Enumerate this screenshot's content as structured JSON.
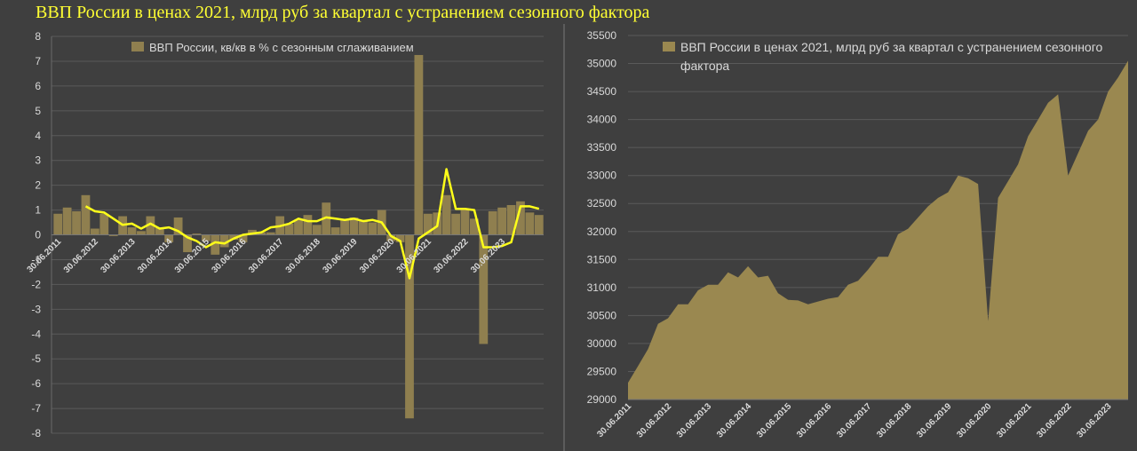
{
  "page_title": "ВВП России в ценах 2021, млрд руб за квартал с устранением сезонного фактора",
  "colors": {
    "background": "#3f3f3f",
    "bar": "#8f7f4f",
    "area": "#9a8850",
    "line": "#ffff1a",
    "title": "#ffff33",
    "text": "#d9d9d9",
    "grid": "#5a5a5a"
  },
  "chart_data": [
    {
      "type": "bar",
      "legend": [
        "ВВП России, кв/кв в % с сезонным сглаживанием"
      ],
      "legend_position": "top",
      "yticks": [
        "8",
        "7",
        "6",
        "5",
        "4",
        "3",
        "2",
        "1",
        "0",
        "-1",
        "-2",
        "-3",
        "-4",
        "-5",
        "-6",
        "-7",
        "-8"
      ],
      "ylim": [
        -8,
        8
      ],
      "xticks": [
        "30.06.2011",
        "30.06.2012",
        "30.06.2013",
        "30.06.2014",
        "30.06.2015",
        "30.06.2016",
        "30.06.2017",
        "30.06.2018",
        "30.06.2019",
        "30.06.2020",
        "30.06.2021",
        "30.06.2022",
        "30.06.2023"
      ],
      "series": [
        {
          "name": "ВВП России, кв/кв в % с сезонным сглаживанием",
          "kind": "bar",
          "values": [
            0.85,
            1.1,
            0.95,
            1.6,
            0.25,
            0.85,
            -0.05,
            0.75,
            0.3,
            0.15,
            0.75,
            0.3,
            -0.3,
            0.7,
            -0.7,
            0.05,
            -0.25,
            -0.8,
            -0.5,
            -0.2,
            -0.3,
            0.2,
            0.1,
            0.1,
            0.75,
            0.45,
            0.6,
            0.8,
            0.4,
            1.3,
            0.3,
            0.6,
            0.7,
            0.6,
            0.5,
            1.0,
            -0.25,
            -0.3,
            -7.4,
            7.25,
            0.85,
            0.9,
            1.6,
            0.85,
            1.05,
            0.65,
            -4.4,
            0.95,
            1.1,
            1.2,
            1.35,
            0.9,
            0.8
          ]
        },
        {
          "name": "",
          "kind": "line",
          "values": [
            null,
            null,
            null,
            1.15,
            0.95,
            0.9,
            0.65,
            0.4,
            0.45,
            0.25,
            0.45,
            0.25,
            0.3,
            0.15,
            -0.1,
            -0.25,
            -0.5,
            -0.3,
            -0.35,
            -0.15,
            0.0,
            0.05,
            0.1,
            0.3,
            0.35,
            0.45,
            0.65,
            0.55,
            0.55,
            0.7,
            0.65,
            0.6,
            0.65,
            0.55,
            0.6,
            0.5,
            -0.05,
            -0.25,
            -1.75,
            -0.15,
            0.1,
            0.35,
            2.65,
            1.05,
            1.05,
            1.0,
            -0.5,
            -0.5,
            -0.45,
            -0.3,
            1.15,
            1.15,
            1.05
          ]
        }
      ]
    },
    {
      "type": "area",
      "legend": [
        "ВВП России в ценах 2021, млрд руб за квартал с устранением сезонного фактора"
      ],
      "legend_position": "top",
      "yticks": [
        "35500",
        "35000",
        "34500",
        "34000",
        "33500",
        "33000",
        "32500",
        "32000",
        "31500",
        "31000",
        "30500",
        "30000",
        "29500",
        "29000"
      ],
      "ylim": [
        29000,
        35500
      ],
      "xticks": [
        "30.06.2011",
        "30.06.2012",
        "30.06.2013",
        "30.06.2014",
        "30.06.2015",
        "30.06.2016",
        "30.06.2017",
        "30.06.2018",
        "30.06.2019",
        "30.06.2020",
        "30.06.2021",
        "30.06.2022",
        "30.06.2023"
      ],
      "series": [
        {
          "name": "ВВП России в ценах 2021, млрд руб за квартал с устранением сезонного фактора",
          "values": [
            29300,
            29600,
            29900,
            30350,
            30450,
            30700,
            30700,
            30950,
            31050,
            31050,
            31270,
            31180,
            31380,
            31180,
            31210,
            30900,
            30780,
            30770,
            30700,
            30750,
            30800,
            30830,
            31050,
            31120,
            31320,
            31550,
            31550,
            31950,
            32050,
            32250,
            32450,
            32600,
            32700,
            33000,
            32950,
            32850,
            30400,
            32600,
            32900,
            33200,
            33700,
            34000,
            34300,
            34450,
            33000,
            33400,
            33800,
            34000,
            34500,
            34750,
            35050
          ]
        }
      ]
    }
  ]
}
